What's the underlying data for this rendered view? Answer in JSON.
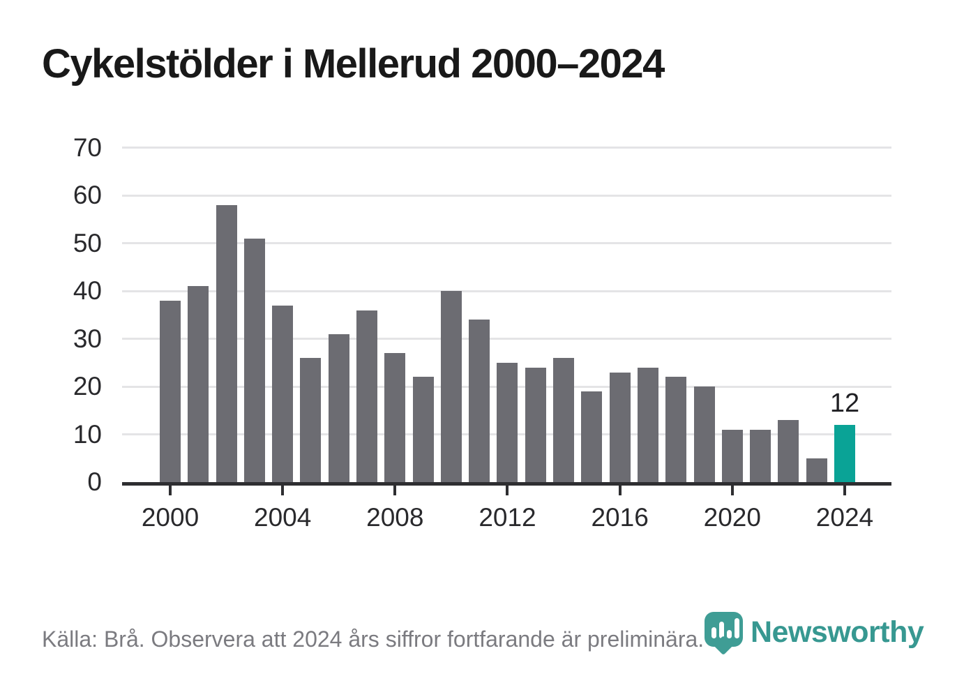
{
  "title": "Cykelstölder i Mellerud 2000–2024",
  "footer": {
    "source_note": "Källa: Brå. Observera att 2024 års siffror fortfarande är preliminära."
  },
  "logo": {
    "name": "Newsworthy",
    "icon": "newsworthy-pin-chart-icon"
  },
  "colors": {
    "bar": "#6c6c72",
    "highlight": "#0aa396",
    "gridline": "#e4e4e6",
    "axis": "#2e2e31",
    "title_text": "#191919",
    "tick_text": "#29292c",
    "footer_text": "#7b7b80",
    "logo_teal": "#379891"
  },
  "chart_data": {
    "type": "bar",
    "title": "Cykelstölder i Mellerud 2000–2024",
    "xlabel": "",
    "ylabel": "",
    "categories": [
      2000,
      2001,
      2002,
      2003,
      2004,
      2005,
      2006,
      2007,
      2008,
      2009,
      2010,
      2011,
      2012,
      2013,
      2014,
      2015,
      2016,
      2017,
      2018,
      2019,
      2020,
      2021,
      2022,
      2023,
      2024
    ],
    "values": [
      38,
      41,
      58,
      51,
      37,
      26,
      31,
      36,
      27,
      22,
      40,
      34,
      25,
      24,
      26,
      19,
      23,
      24,
      22,
      20,
      11,
      11,
      13,
      5,
      12
    ],
    "ylim": [
      0,
      70
    ],
    "yticks": [
      0,
      10,
      20,
      30,
      40,
      50,
      60,
      70
    ],
    "xticks": [
      2000,
      2004,
      2008,
      2012,
      2016,
      2020,
      2024
    ],
    "grid": "horizontal",
    "legend": "none",
    "highlight_index": 24,
    "highlight_value_label": "12"
  }
}
